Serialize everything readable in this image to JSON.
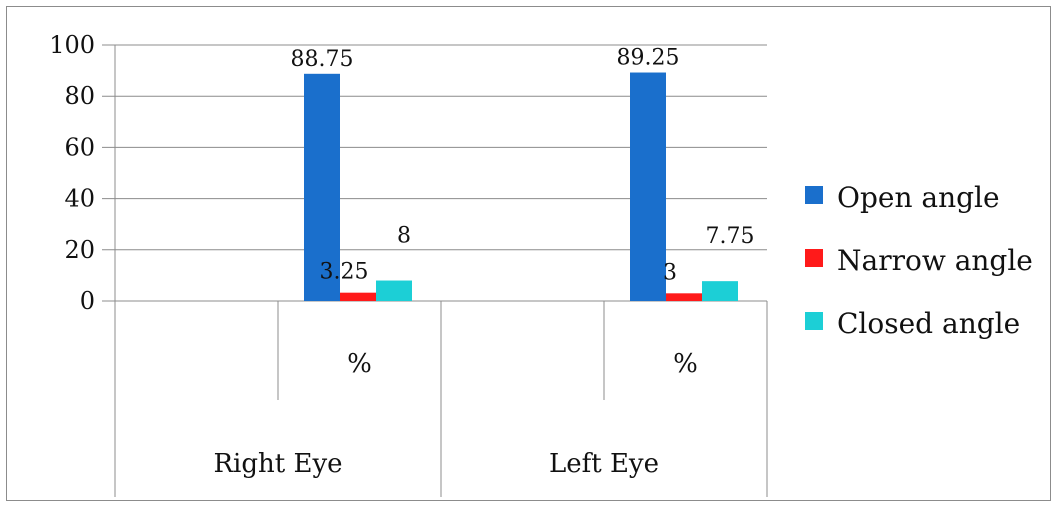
{
  "chart_data": {
    "type": "bar",
    "groups": [
      "Right Eye",
      "Left Eye"
    ],
    "categories": [
      "%",
      "%"
    ],
    "series": [
      {
        "name": "Open angle",
        "values": [
          88.75,
          89.25
        ],
        "labels": [
          "88.75",
          "89.25"
        ],
        "color": "#1a6fcc"
      },
      {
        "name": "Narrow angle",
        "values": [
          3.25,
          3
        ],
        "labels": [
          "3.25",
          "3"
        ],
        "color": "#ff1a1a"
      },
      {
        "name": "Closed angle",
        "values": [
          8,
          7.75
        ],
        "labels": [
          "8",
          "7.75"
        ],
        "color": "#1ccfd6"
      }
    ],
    "yticks": [
      "0",
      "20",
      "40",
      "60",
      "80",
      "100"
    ],
    "ylim": [
      0,
      100
    ],
    "grid": true,
    "legend_position": "right",
    "title": "",
    "xlabel": "",
    "ylabel": ""
  }
}
